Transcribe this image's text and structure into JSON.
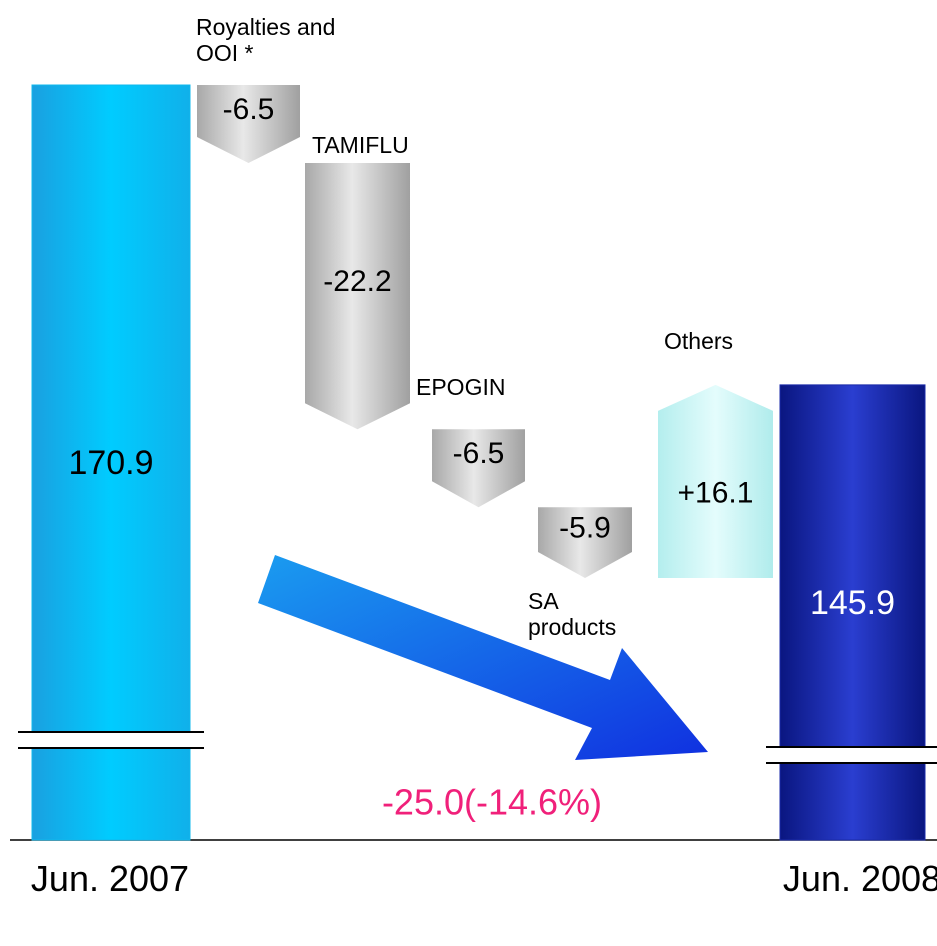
{
  "chart_data": {
    "type": "waterfall",
    "categories": [
      "Jun. 2007",
      "Royalties and OOI *",
      "TAMIFLU",
      "EPOGIN",
      "SA products",
      "Others",
      "Jun. 2008"
    ],
    "values": [
      170.9,
      -6.5,
      -22.2,
      -6.5,
      -5.9,
      16.1,
      145.9
    ],
    "value_labels": [
      "170.9",
      "-6.5",
      "-22.2",
      "-6.5",
      "-5.9",
      "+16.1",
      "145.9"
    ],
    "kinds": [
      "total",
      "delta",
      "delta",
      "delta",
      "delta",
      "delta",
      "total"
    ],
    "colors": [
      "#10b8ec",
      "#c4c4c4",
      "#c4c4c4",
      "#c4c4c4",
      "#c4c4c4",
      "#c6f4f4",
      "#1a2aa8"
    ],
    "annotation": "-25.0(-14.6%)"
  }
}
